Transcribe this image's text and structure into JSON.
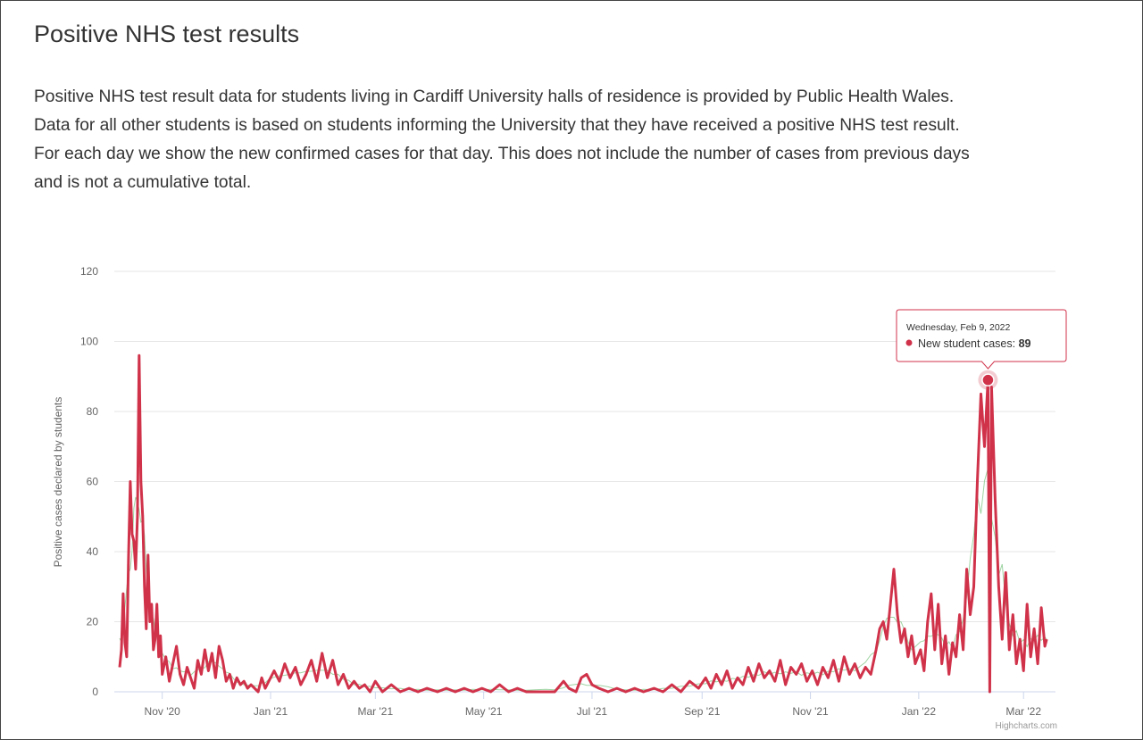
{
  "title": "Positive NHS test results",
  "description": [
    "Positive NHS test result data for students living in Cardiff University halls of residence is provided by Public Health Wales.",
    "Data for all other students is based on students informing the University that they have received a positive NHS test result.",
    "For each day we show the new confirmed cases for that day. This does not include the number of cases from previous days",
    "and is not a cumulative total."
  ],
  "colors": {
    "series": "#d0324a",
    "grid": "#e6e6e6",
    "smoothed": "#9fd4a3"
  },
  "credits": "Highcharts.com",
  "tooltip": {
    "date": "Wednesday, Feb 9, 2022",
    "label": "New student cases: ",
    "value": "89"
  },
  "chart_data": {
    "type": "line",
    "title": "",
    "xlabel": "",
    "ylabel": "Positive cases declared by students",
    "ylim": [
      0,
      120
    ],
    "yticks": [
      "0",
      "20",
      "40",
      "60",
      "80",
      "100",
      "120"
    ],
    "xticks": [
      {
        "label": "Nov '20",
        "date": "2020-11-01"
      },
      {
        "label": "Jan '21",
        "date": "2021-01-01"
      },
      {
        "label": "Mar '21",
        "date": "2021-03-01"
      },
      {
        "label": "May '21",
        "date": "2021-05-01"
      },
      {
        "label": "Jul '21",
        "date": "2021-07-01"
      },
      {
        "label": "Sep '21",
        "date": "2021-09-01"
      },
      {
        "label": "Nov '21",
        "date": "2021-11-01"
      },
      {
        "label": "Jan '22",
        "date": "2022-01-01"
      },
      {
        "label": "Mar '22",
        "date": "2022-03-01"
      }
    ],
    "grid": true,
    "legend": "none",
    "highlight": {
      "date": "2022-02-09",
      "value": 89
    },
    "series": [
      {
        "name": "New student cases",
        "points": [
          [
            "2020-10-08",
            7
          ],
          [
            "2020-10-09",
            12
          ],
          [
            "2020-10-10",
            28
          ],
          [
            "2020-10-11",
            14
          ],
          [
            "2020-10-12",
            10
          ],
          [
            "2020-10-13",
            38
          ],
          [
            "2020-10-14",
            60
          ],
          [
            "2020-10-15",
            45
          ],
          [
            "2020-10-16",
            43
          ],
          [
            "2020-10-17",
            35
          ],
          [
            "2020-10-18",
            50
          ],
          [
            "2020-10-19",
            96
          ],
          [
            "2020-10-20",
            60
          ],
          [
            "2020-10-21",
            50
          ],
          [
            "2020-10-22",
            30
          ],
          [
            "2020-10-23",
            18
          ],
          [
            "2020-10-24",
            39
          ],
          [
            "2020-10-25",
            20
          ],
          [
            "2020-10-26",
            25
          ],
          [
            "2020-10-27",
            12
          ],
          [
            "2020-10-28",
            15
          ],
          [
            "2020-10-29",
            25
          ],
          [
            "2020-10-30",
            10
          ],
          [
            "2020-10-31",
            16
          ],
          [
            "2020-11-01",
            5
          ],
          [
            "2020-11-03",
            10
          ],
          [
            "2020-11-05",
            3
          ],
          [
            "2020-11-07",
            8
          ],
          [
            "2020-11-09",
            13
          ],
          [
            "2020-11-11",
            5
          ],
          [
            "2020-11-13",
            2
          ],
          [
            "2020-11-15",
            7
          ],
          [
            "2020-11-17",
            4
          ],
          [
            "2020-11-19",
            1
          ],
          [
            "2020-11-21",
            9
          ],
          [
            "2020-11-23",
            5
          ],
          [
            "2020-11-25",
            12
          ],
          [
            "2020-11-27",
            6
          ],
          [
            "2020-11-29",
            11
          ],
          [
            "2020-12-01",
            4
          ],
          [
            "2020-12-03",
            13
          ],
          [
            "2020-12-05",
            9
          ],
          [
            "2020-12-07",
            3
          ],
          [
            "2020-12-09",
            5
          ],
          [
            "2020-12-11",
            1
          ],
          [
            "2020-12-13",
            4
          ],
          [
            "2020-12-15",
            2
          ],
          [
            "2020-12-17",
            3
          ],
          [
            "2020-12-19",
            1
          ],
          [
            "2020-12-21",
            2
          ],
          [
            "2020-12-23",
            1
          ],
          [
            "2020-12-25",
            0
          ],
          [
            "2020-12-27",
            4
          ],
          [
            "2020-12-29",
            1
          ],
          [
            "2020-12-31",
            3
          ],
          [
            "2021-01-03",
            6
          ],
          [
            "2021-01-06",
            3
          ],
          [
            "2021-01-09",
            8
          ],
          [
            "2021-01-12",
            4
          ],
          [
            "2021-01-15",
            7
          ],
          [
            "2021-01-18",
            2
          ],
          [
            "2021-01-21",
            5
          ],
          [
            "2021-01-24",
            9
          ],
          [
            "2021-01-27",
            3
          ],
          [
            "2021-01-30",
            11
          ],
          [
            "2021-02-02",
            4
          ],
          [
            "2021-02-05",
            9
          ],
          [
            "2021-02-08",
            2
          ],
          [
            "2021-02-11",
            5
          ],
          [
            "2021-02-14",
            1
          ],
          [
            "2021-02-17",
            3
          ],
          [
            "2021-02-20",
            1
          ],
          [
            "2021-02-23",
            2
          ],
          [
            "2021-02-26",
            0
          ],
          [
            "2021-03-01",
            3
          ],
          [
            "2021-03-05",
            0
          ],
          [
            "2021-03-10",
            2
          ],
          [
            "2021-03-15",
            0
          ],
          [
            "2021-03-20",
            1
          ],
          [
            "2021-03-25",
            0
          ],
          [
            "2021-03-30",
            1
          ],
          [
            "2021-04-05",
            0
          ],
          [
            "2021-04-10",
            1
          ],
          [
            "2021-04-15",
            0
          ],
          [
            "2021-04-20",
            1
          ],
          [
            "2021-04-25",
            0
          ],
          [
            "2021-04-30",
            1
          ],
          [
            "2021-05-05",
            0
          ],
          [
            "2021-05-10",
            2
          ],
          [
            "2021-05-15",
            0
          ],
          [
            "2021-05-20",
            1
          ],
          [
            "2021-05-25",
            0
          ],
          [
            "2021-05-30",
            0
          ],
          [
            "2021-06-05",
            0
          ],
          [
            "2021-06-10",
            0
          ],
          [
            "2021-06-15",
            3
          ],
          [
            "2021-06-18",
            1
          ],
          [
            "2021-06-22",
            0
          ],
          [
            "2021-06-25",
            4
          ],
          [
            "2021-06-28",
            5
          ],
          [
            "2021-07-01",
            2
          ],
          [
            "2021-07-05",
            1
          ],
          [
            "2021-07-10",
            0
          ],
          [
            "2021-07-15",
            1
          ],
          [
            "2021-07-20",
            0
          ],
          [
            "2021-07-25",
            1
          ],
          [
            "2021-07-30",
            0
          ],
          [
            "2021-08-05",
            1
          ],
          [
            "2021-08-10",
            0
          ],
          [
            "2021-08-15",
            2
          ],
          [
            "2021-08-20",
            0
          ],
          [
            "2021-08-25",
            3
          ],
          [
            "2021-08-30",
            1
          ],
          [
            "2021-09-03",
            4
          ],
          [
            "2021-09-06",
            1
          ],
          [
            "2021-09-09",
            5
          ],
          [
            "2021-09-12",
            2
          ],
          [
            "2021-09-15",
            6
          ],
          [
            "2021-09-18",
            1
          ],
          [
            "2021-09-21",
            4
          ],
          [
            "2021-09-24",
            2
          ],
          [
            "2021-09-27",
            7
          ],
          [
            "2021-09-30",
            3
          ],
          [
            "2021-10-03",
            8
          ],
          [
            "2021-10-06",
            4
          ],
          [
            "2021-10-09",
            6
          ],
          [
            "2021-10-12",
            3
          ],
          [
            "2021-10-15",
            9
          ],
          [
            "2021-10-18",
            2
          ],
          [
            "2021-10-21",
            7
          ],
          [
            "2021-10-24",
            5
          ],
          [
            "2021-10-27",
            8
          ],
          [
            "2021-10-30",
            3
          ],
          [
            "2021-11-02",
            6
          ],
          [
            "2021-11-05",
            2
          ],
          [
            "2021-11-08",
            7
          ],
          [
            "2021-11-11",
            4
          ],
          [
            "2021-11-14",
            9
          ],
          [
            "2021-11-17",
            3
          ],
          [
            "2021-11-20",
            10
          ],
          [
            "2021-11-23",
            5
          ],
          [
            "2021-11-26",
            8
          ],
          [
            "2021-11-29",
            4
          ],
          [
            "2021-12-02",
            7
          ],
          [
            "2021-12-05",
            5
          ],
          [
            "2021-12-08",
            12
          ],
          [
            "2021-12-10",
            18
          ],
          [
            "2021-12-12",
            20
          ],
          [
            "2021-12-14",
            15
          ],
          [
            "2021-12-16",
            25
          ],
          [
            "2021-12-18",
            35
          ],
          [
            "2021-12-20",
            22
          ],
          [
            "2021-12-22",
            14
          ],
          [
            "2021-12-24",
            18
          ],
          [
            "2021-12-26",
            10
          ],
          [
            "2021-12-28",
            16
          ],
          [
            "2021-12-30",
            8
          ],
          [
            "2022-01-02",
            12
          ],
          [
            "2022-01-04",
            6
          ],
          [
            "2022-01-06",
            20
          ],
          [
            "2022-01-08",
            28
          ],
          [
            "2022-01-10",
            12
          ],
          [
            "2022-01-12",
            25
          ],
          [
            "2022-01-14",
            8
          ],
          [
            "2022-01-16",
            16
          ],
          [
            "2022-01-18",
            5
          ],
          [
            "2022-01-20",
            14
          ],
          [
            "2022-01-22",
            10
          ],
          [
            "2022-01-24",
            22
          ],
          [
            "2022-01-26",
            12
          ],
          [
            "2022-01-28",
            35
          ],
          [
            "2022-01-30",
            22
          ],
          [
            "2022-02-01",
            30
          ],
          [
            "2022-02-03",
            60
          ],
          [
            "2022-02-05",
            85
          ],
          [
            "2022-02-07",
            70
          ],
          [
            "2022-02-09",
            89
          ],
          [
            "2022-02-10",
            0
          ],
          [
            "2022-02-11",
            87
          ],
          [
            "2022-02-13",
            55
          ],
          [
            "2022-02-15",
            30
          ],
          [
            "2022-02-17",
            15
          ],
          [
            "2022-02-19",
            34
          ],
          [
            "2022-02-21",
            12
          ],
          [
            "2022-02-23",
            22
          ],
          [
            "2022-02-25",
            8
          ],
          [
            "2022-02-27",
            15
          ],
          [
            "2022-03-01",
            6
          ],
          [
            "2022-03-03",
            25
          ],
          [
            "2022-03-05",
            10
          ],
          [
            "2022-03-07",
            18
          ],
          [
            "2022-03-09",
            8
          ],
          [
            "2022-03-11",
            24
          ],
          [
            "2022-03-13",
            13
          ],
          [
            "2022-03-14",
            15
          ]
        ]
      }
    ]
  }
}
